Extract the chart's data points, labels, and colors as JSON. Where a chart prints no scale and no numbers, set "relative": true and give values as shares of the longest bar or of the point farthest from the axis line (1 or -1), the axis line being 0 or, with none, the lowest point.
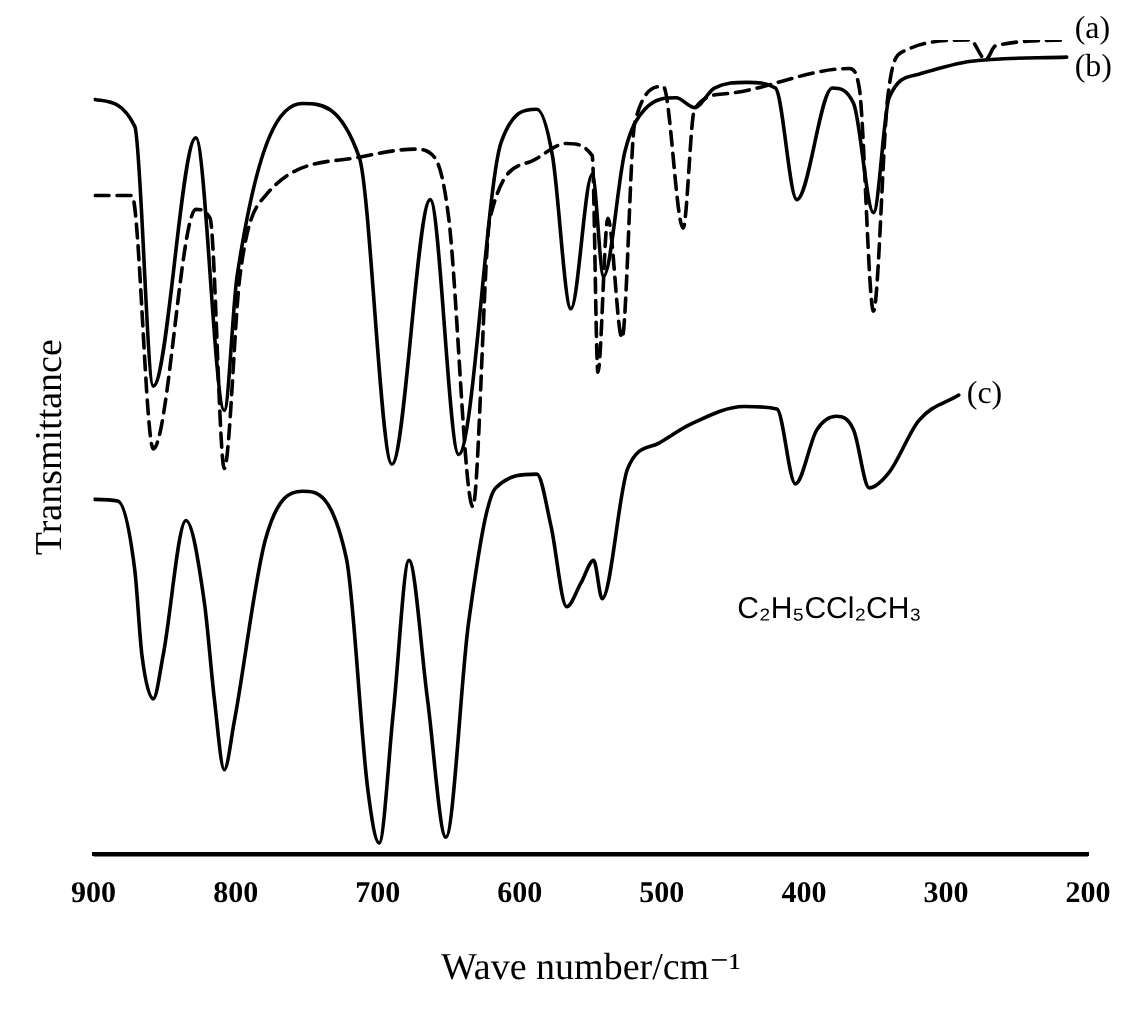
{
  "chart_data": {
    "type": "line",
    "relative": true,
    "xlabel": "Wave number/cm⁻¹",
    "ylabel": "Transmittance",
    "xlim": [
      900,
      200
    ],
    "xticks": [
      900,
      800,
      700,
      600,
      500,
      400,
      300,
      200
    ],
    "grid": false,
    "legend": false,
    "marker": "none",
    "annotations": [
      "C₂H₅CCl₂CH₃"
    ],
    "series": [
      {
        "name": "(a)",
        "color": "#000000",
        "line_style": "dashed",
        "x": [
          899,
          873,
          858,
          828,
          818,
          808,
          797,
          779,
          713,
          674,
          660,
          650,
          633,
          621,
          592,
          567,
          549,
          545,
          538,
          528,
          519,
          499,
          485,
          477,
          455,
          368,
          361,
          351,
          341,
          330,
          283,
          272,
          265,
          215
        ],
        "values": [
          0.809,
          0.809,
          0.498,
          0.792,
          0.781,
          0.474,
          0.71,
          0.809,
          0.856,
          0.866,
          0.856,
          0.781,
          0.427,
          0.781,
          0.851,
          0.873,
          0.858,
          0.592,
          0.781,
          0.634,
          0.899,
          0.943,
          0.769,
          0.915,
          0.934,
          0.965,
          0.941,
          0.667,
          0.929,
          0.986,
          1,
          0.976,
          0.993,
          1
        ]
      },
      {
        "name": "(b)",
        "color": "#000000",
        "line_style": "solid",
        "x": [
          899,
          871,
          858,
          828,
          808,
          799,
          753,
          713,
          690,
          663,
          643,
          613,
          588,
          577,
          564,
          549,
          541,
          526,
          512,
          490,
          477,
          463,
          440,
          420,
          405,
          380,
          365,
          351,
          340,
          319,
          282,
          215
        ],
        "values": [
          0.927,
          0.894,
          0.575,
          0.88,
          0.545,
          0.71,
          0.922,
          0.856,
          0.479,
          0.804,
          0.491,
          0.875,
          0.915,
          0.858,
          0.67,
          0.835,
          0.71,
          0.863,
          0.915,
          0.929,
          0.917,
          0.941,
          0.948,
          0.941,
          0.804,
          0.941,
          0.922,
          0.788,
          0.929,
          0.958,
          0.974,
          0.979
        ]
      },
      {
        "name": "(c)",
        "color": "#000000",
        "line_style": "solid",
        "x": [
          900,
          883,
          871,
          866,
          858,
          851,
          835,
          822,
          815,
          808,
          801,
          779,
          753,
          722,
          707,
          699,
          689,
          678,
          665,
          652,
          636,
          617,
          588,
          578,
          567,
          557,
          548,
          542,
          524,
          502,
          480,
          442,
          419,
          406,
          391,
          377,
          365,
          354,
          340,
          319,
          291
        ],
        "values": [
          0.436,
          0.434,
          0.349,
          0.245,
          0.191,
          0.245,
          0.41,
          0.309,
          0.191,
          0.104,
          0.163,
          0.387,
          0.446,
          0.363,
          0.08,
          0.014,
          0.175,
          0.361,
          0.191,
          0.021,
          0.285,
          0.45,
          0.467,
          0.403,
          0.304,
          0.333,
          0.361,
          0.314,
          0.474,
          0.505,
          0.528,
          0.55,
          0.547,
          0.455,
          0.521,
          0.538,
          0.521,
          0.45,
          0.469,
          0.533,
          0.564
        ]
      }
    ]
  }
}
